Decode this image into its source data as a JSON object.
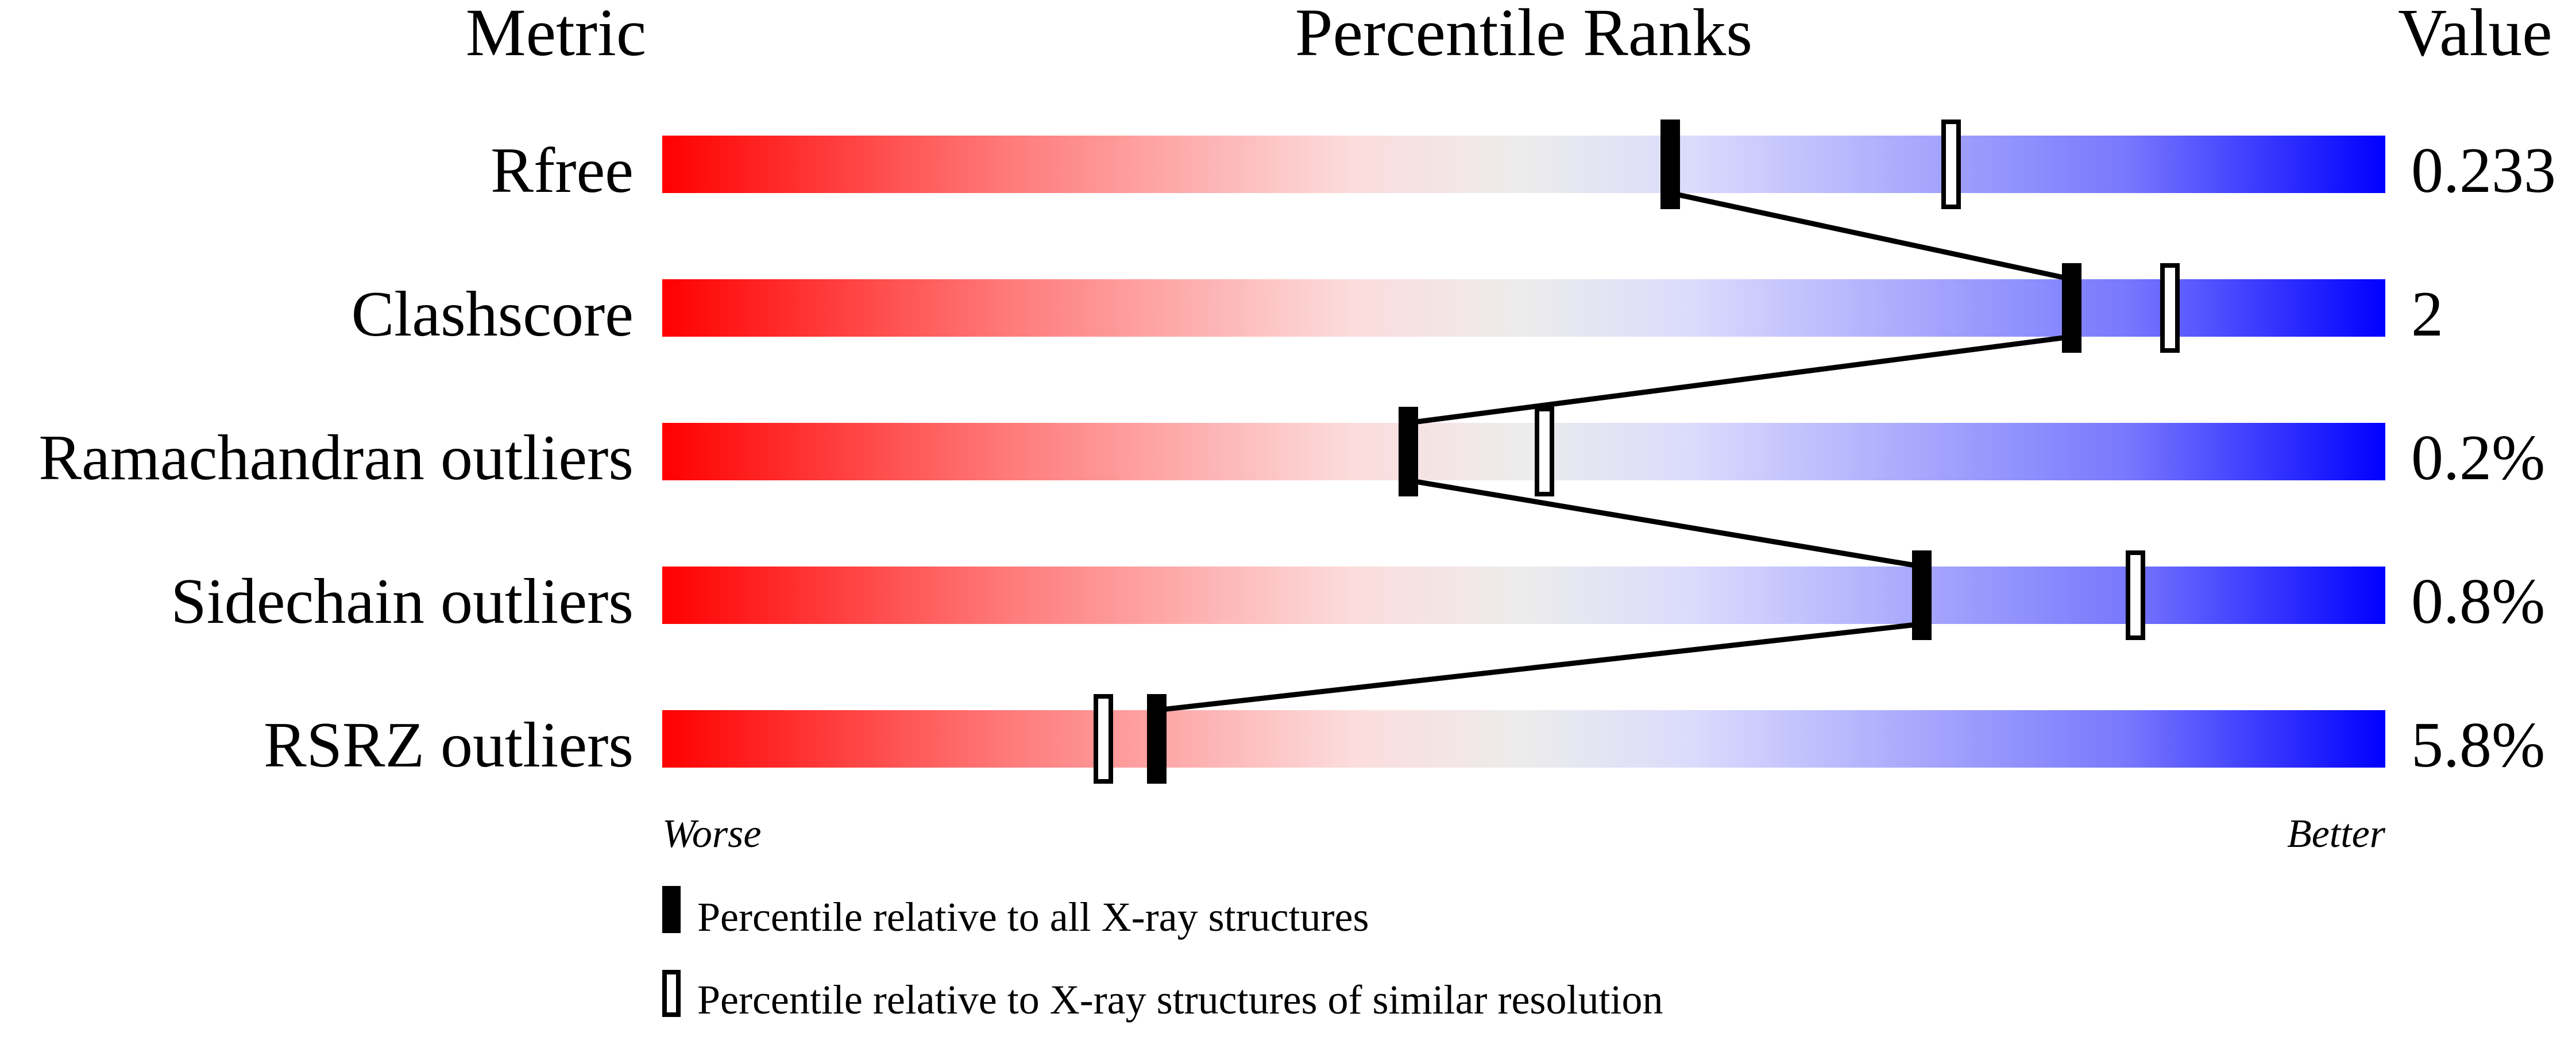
{
  "headers": {
    "metric": "Metric",
    "percentile": "Percentile Ranks",
    "value": "Value"
  },
  "chart_data": {
    "type": "bar",
    "title": "",
    "xlim": [
      0,
      100
    ],
    "x_axis_left_label": "Worse",
    "x_axis_right_label": "Better",
    "gradient_colors": [
      "#ff0000",
      "#ff7a7a",
      "#fcdcdc",
      "#ececec",
      "#dadafd",
      "#7878fd",
      "#0000ff"
    ],
    "metrics": [
      {
        "name": "Rfree",
        "value": "0.233",
        "percentile_all": 58.5,
        "percentile_similar": 74.8
      },
      {
        "name": "Clashscore",
        "value": "2",
        "percentile_all": 81.8,
        "percentile_similar": 87.5
      },
      {
        "name": "Ramachandran outliers",
        "value": "0.2%",
        "percentile_all": 43.3,
        "percentile_similar": 51.2
      },
      {
        "name": "Sidechain outliers",
        "value": "0.8%",
        "percentile_all": 73.1,
        "percentile_similar": 85.5
      },
      {
        "name": "RSRZ outliers",
        "value": "5.8%",
        "percentile_all": 28.7,
        "percentile_similar": 25.6
      }
    ],
    "legend": [
      {
        "marker": "filled",
        "label": "Percentile relative to all X-ray structures"
      },
      {
        "marker": "open",
        "label": "Percentile relative to X-ray structures of similar resolution"
      }
    ]
  }
}
